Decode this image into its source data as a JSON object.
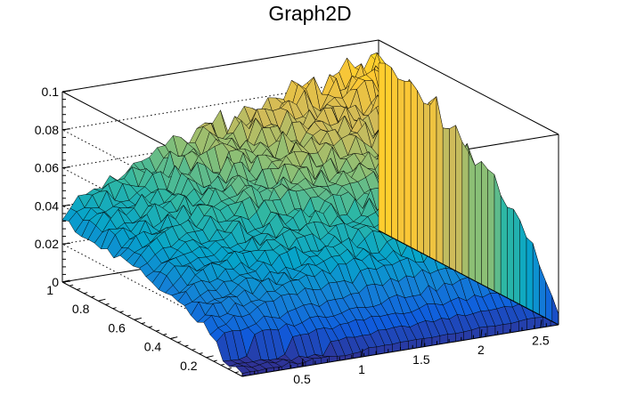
{
  "chart_data": {
    "type": "surface",
    "title": "Graph2D",
    "xlabel": "",
    "ylabel": "",
    "zlabel": "",
    "xlim": [
      0,
      2.65
    ],
    "ylim": [
      0,
      1
    ],
    "zlim": [
      0,
      0.1
    ],
    "x_ticks": [
      "0.5",
      "1",
      "1.5",
      "2",
      "2.5"
    ],
    "y_ticks": [
      "0.2",
      "0.4",
      "0.6",
      "0.8",
      "1"
    ],
    "z_ticks": [
      "0",
      "0.02",
      "0.04",
      "0.06",
      "0.08",
      "0.1"
    ],
    "grid": true,
    "palette": [
      "#352a87",
      "#0f5cdd",
      "#1481d6",
      "#06a4ca",
      "#2eb7a4",
      "#87bf77",
      "#d1bb59",
      "#fec832",
      "#f9fb0e"
    ],
    "surface_profile": {
      "y_samples": [
        0,
        0.2,
        0.4,
        0.6,
        0.8,
        1.0
      ],
      "max_height_vs_y": [
        0.006,
        0.05,
        0.07,
        0.085,
        0.093,
        0.1
      ],
      "note_x_threshold": 1.0
    }
  }
}
